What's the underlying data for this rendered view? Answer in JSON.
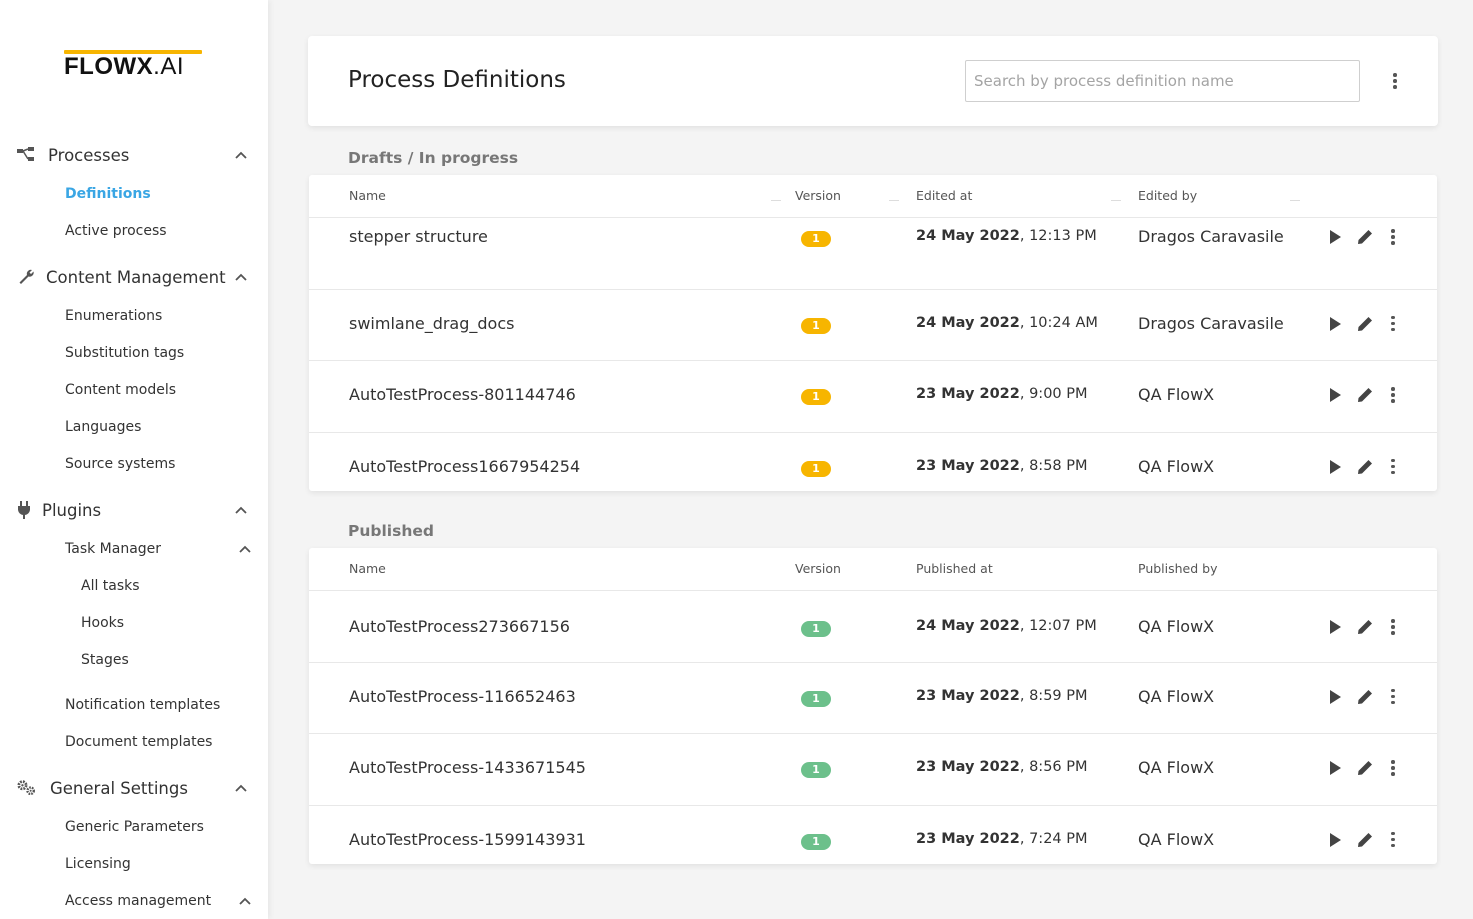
{
  "brand": {
    "name_bold": "FLOWX",
    "name_light": ".AI",
    "accent": "#f7b500"
  },
  "sidebar": {
    "groups": [
      {
        "label": "Processes",
        "icon": "processes-icon",
        "items": [
          "Definitions",
          "Active process"
        ]
      },
      {
        "label": "Content Management",
        "icon": "wrench-icon",
        "items": [
          "Enumerations",
          "Substitution tags",
          "Content models",
          "Languages",
          "Source systems"
        ]
      },
      {
        "label": "Plugins",
        "icon": "plug-icon",
        "sub_head": "Task Manager",
        "sub_items": [
          "All tasks",
          "Hooks",
          "Stages"
        ],
        "items": [
          "Notification templates",
          "Document templates"
        ]
      },
      {
        "label": "General Settings",
        "icon": "gears-icon",
        "items": [
          "Generic Parameters",
          "Licensing"
        ],
        "sub_head": "Access management"
      }
    ],
    "active_item": "Definitions",
    "active_color": "#3aa6e4"
  },
  "header": {
    "title": "Process Definitions",
    "search_placeholder": "Search by process definition name"
  },
  "drafts": {
    "title": "Drafts / In progress",
    "columns": [
      "Name",
      "Version",
      "Edited at",
      "Edited by"
    ],
    "rows": [
      {
        "name": "stepper structure",
        "version": "1",
        "date": "24 May 2022",
        "time": ", 12:13 PM",
        "user": "Dragos Caravasile"
      },
      {
        "name": "swimlane_drag_docs",
        "version": "1",
        "date": "24 May 2022",
        "time": ", 10:24 AM",
        "user": "Dragos Caravasile"
      },
      {
        "name": "AutoTestProcess-801144746",
        "version": "1",
        "date": "23 May 2022",
        "time": ", 9:00 PM",
        "user": "QA FlowX"
      },
      {
        "name": "AutoTestProcess1667954254",
        "version": "1",
        "date": "23 May 2022",
        "time": ", 8:58 PM",
        "user": "QA FlowX"
      }
    ]
  },
  "published": {
    "title": "Published",
    "columns": [
      "Name",
      "Version",
      "Published at",
      "Published by"
    ],
    "rows": [
      {
        "name": "AutoTestProcess273667156",
        "version": "1",
        "date": "24 May 2022",
        "time": ", 12:07 PM",
        "user": "QA FlowX"
      },
      {
        "name": "AutoTestProcess-116652463",
        "version": "1",
        "date": "23 May 2022",
        "time": ", 8:59 PM",
        "user": "QA FlowX"
      },
      {
        "name": "AutoTestProcess-1433671545",
        "version": "1",
        "date": "23 May 2022",
        "time": ", 8:56 PM",
        "user": "QA FlowX"
      },
      {
        "name": "AutoTestProcess-1599143931",
        "version": "1",
        "date": "23 May 2022",
        "time": ", 7:24 PM",
        "user": "QA FlowX"
      }
    ]
  },
  "colors": {
    "draft_badge": "#f7b500",
    "published_badge": "#6cc08b"
  }
}
